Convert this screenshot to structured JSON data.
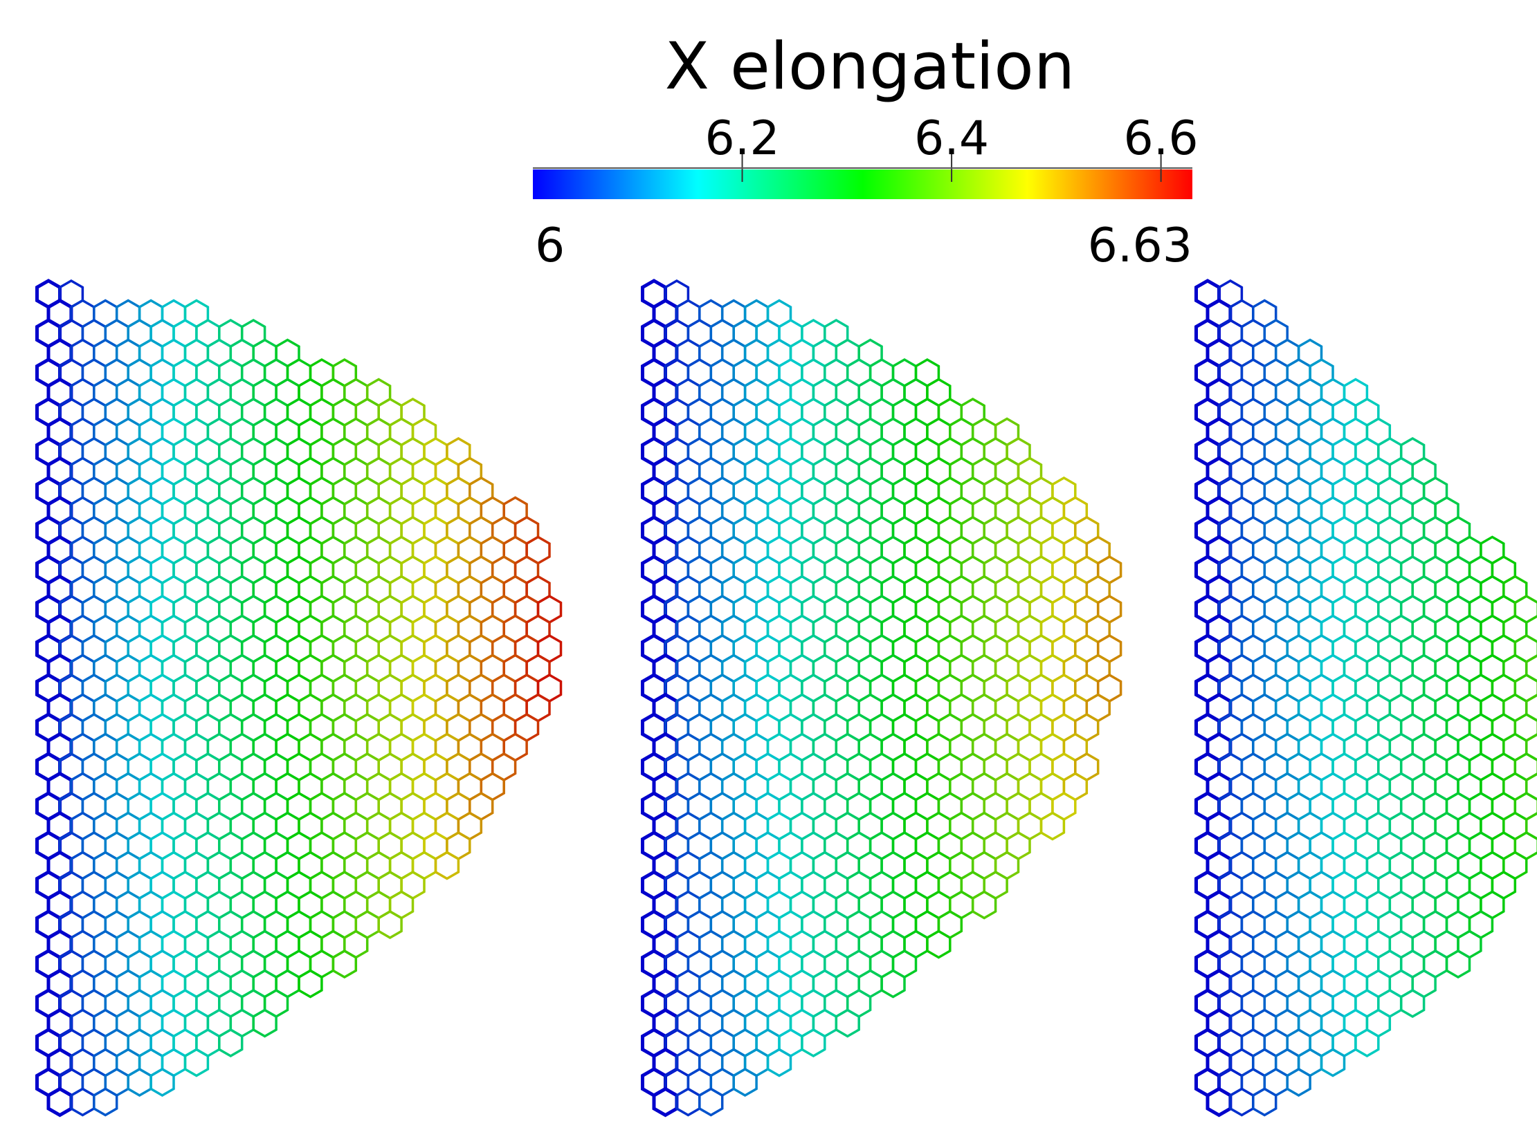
{
  "chart_data": {
    "type": "colorbar",
    "title": "X elongation",
    "clim": [
      6,
      6.63
    ],
    "ticks": [
      6.2,
      6.4,
      6.6
    ],
    "colormap": [
      "#0000ff",
      "#00ffff",
      "#00ff00",
      "#ffff00",
      "#ff0000"
    ]
  }
}
